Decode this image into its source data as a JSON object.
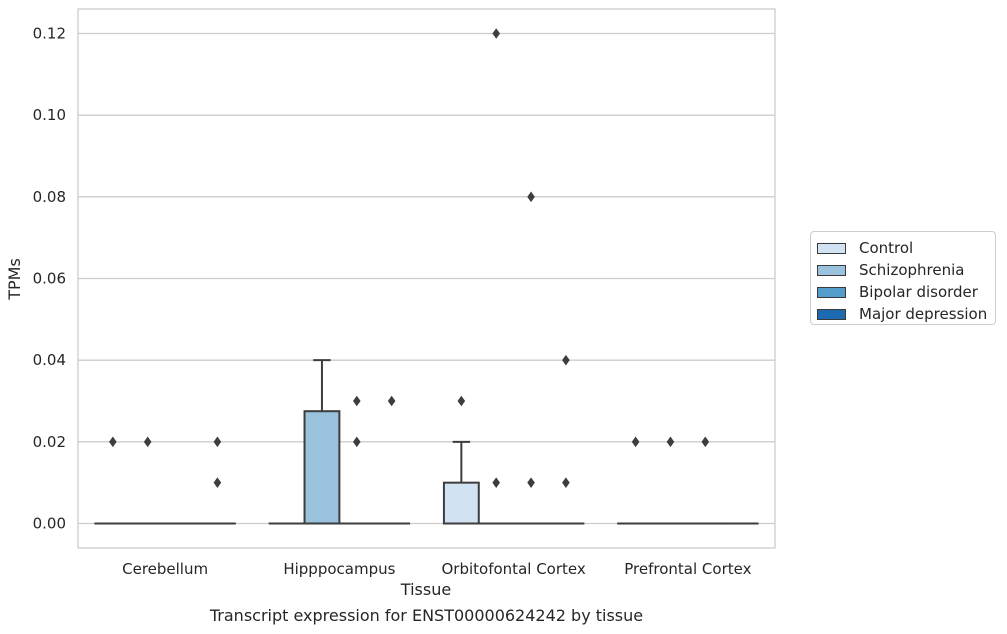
{
  "chart_data": {
    "type": "box",
    "title": "",
    "caption": "Transcript expression for ENST00000624242 by tissue",
    "xlabel": "Tissue",
    "ylabel": "TPMs",
    "ylim": [
      -0.006,
      0.126
    ],
    "yticks": [
      "0.00",
      "0.02",
      "0.04",
      "0.06",
      "0.08",
      "0.10",
      "0.12"
    ],
    "ytick_values": [
      0,
      0.02,
      0.04,
      0.06,
      0.08,
      0.1,
      0.12
    ],
    "grid": "horizontal",
    "legend_position": "right",
    "categories": [
      "Cerebellum",
      "Hipppocampus",
      "Orbitofontal Cortex",
      "Prefrontal Cortex"
    ],
    "series": [
      {
        "name": "Control",
        "color": "#d1e2f2",
        "boxes": [
          {
            "q1": 0,
            "median": 0,
            "q3": 0,
            "whislo": 0,
            "whishi": 0,
            "fliers": [
              0.02
            ]
          },
          {
            "q1": 0,
            "median": 0,
            "q3": 0,
            "whislo": 0,
            "whishi": 0,
            "fliers": []
          },
          {
            "q1": 0,
            "median": 0,
            "q3": 0.01,
            "whislo": 0,
            "whishi": 0.02,
            "fliers": [
              0.03
            ]
          },
          {
            "q1": 0,
            "median": 0,
            "q3": 0,
            "whislo": 0,
            "whishi": 0,
            "fliers": [
              0.02
            ]
          }
        ]
      },
      {
        "name": "Schizophrenia",
        "color": "#9ac2dd",
        "boxes": [
          {
            "q1": 0,
            "median": 0,
            "q3": 0,
            "whislo": 0,
            "whishi": 0,
            "fliers": [
              0.02
            ]
          },
          {
            "q1": 0,
            "median": 0,
            "q3": 0.0275,
            "whislo": 0,
            "whishi": 0.04,
            "fliers": []
          },
          {
            "q1": 0,
            "median": 0,
            "q3": 0,
            "whislo": 0,
            "whishi": 0,
            "fliers": [
              0.12,
              0.01
            ]
          },
          {
            "q1": 0,
            "median": 0,
            "q3": 0,
            "whislo": 0,
            "whishi": 0,
            "fliers": [
              0.02
            ]
          }
        ]
      },
      {
        "name": "Bipolar disorder",
        "color": "#529dcc",
        "boxes": [
          {
            "q1": 0,
            "median": 0,
            "q3": 0,
            "whislo": 0,
            "whishi": 0,
            "fliers": []
          },
          {
            "q1": 0,
            "median": 0,
            "q3": 0,
            "whislo": 0,
            "whishi": 0,
            "fliers": [
              0.03,
              0.02
            ]
          },
          {
            "q1": 0,
            "median": 0,
            "q3": 0,
            "whislo": 0,
            "whishi": 0,
            "fliers": [
              0.08,
              0.01
            ]
          },
          {
            "q1": 0,
            "median": 0,
            "q3": 0,
            "whislo": 0,
            "whishi": 0,
            "fliers": [
              0.02
            ]
          }
        ]
      },
      {
        "name": "Major depression",
        "color": "#1c6aaf",
        "boxes": [
          {
            "q1": 0,
            "median": 0,
            "q3": 0,
            "whislo": 0,
            "whishi": 0,
            "fliers": [
              0.02,
              0.01
            ]
          },
          {
            "q1": 0,
            "median": 0,
            "q3": 0,
            "whislo": 0,
            "whishi": 0,
            "fliers": [
              0.03
            ]
          },
          {
            "q1": 0,
            "median": 0,
            "q3": 0,
            "whislo": 0,
            "whishi": 0,
            "fliers": [
              0.04,
              0.01
            ]
          },
          {
            "q1": 0,
            "median": 0,
            "q3": 0,
            "whislo": 0,
            "whishi": 0,
            "fliers": []
          }
        ]
      }
    ]
  },
  "legend": {
    "items": [
      {
        "label": "Control",
        "color": "#d1e2f2"
      },
      {
        "label": "Schizophrenia",
        "color": "#9ac2dd"
      },
      {
        "label": "Bipolar disorder",
        "color": "#529dcc"
      },
      {
        "label": "Major depression",
        "color": "#1c6aaf"
      }
    ]
  }
}
